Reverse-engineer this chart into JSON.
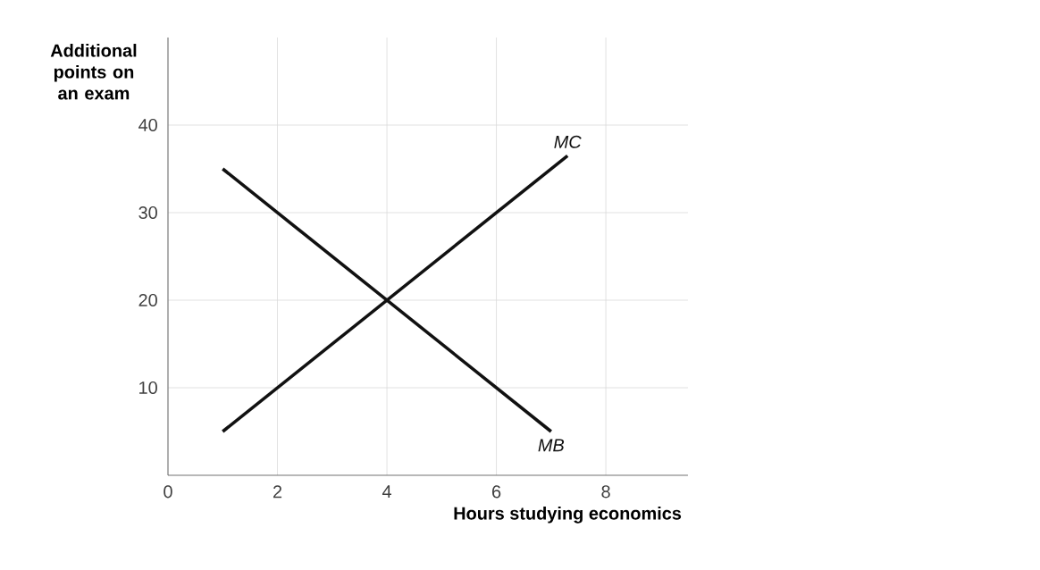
{
  "chart_data": {
    "type": "line",
    "xlabel": "Hours studying economics",
    "ylabel": "Additional points on an exam",
    "xlim": [
      0,
      9.5
    ],
    "ylim": [
      0,
      50
    ],
    "xticks": [
      0,
      2,
      4,
      6,
      8
    ],
    "yticks": [
      10,
      20,
      30,
      40
    ],
    "series": [
      {
        "name": "MC",
        "color": "#111111",
        "x": [
          1,
          7.3
        ],
        "values": [
          5,
          36.5
        ]
      },
      {
        "name": "MB",
        "color": "#111111",
        "x": [
          1,
          7
        ],
        "values": [
          35,
          5
        ]
      }
    ],
    "grid": true,
    "marker": "none",
    "line_style": "solid"
  }
}
